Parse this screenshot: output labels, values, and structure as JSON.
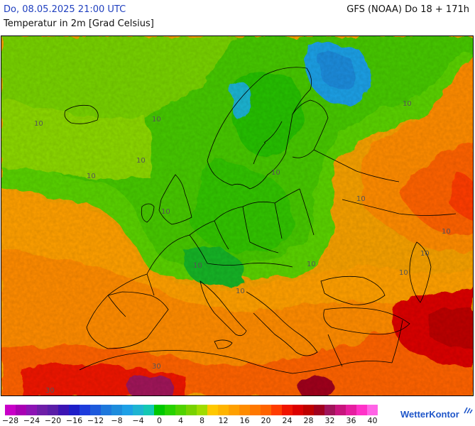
{
  "header": {
    "datetime": "Do, 08.05.2025 21:00 UTC",
    "model_run": "GFS (NOAA) Do 18 + 171h",
    "variable": "Temperatur in 2m [Grad Celsius]"
  },
  "map": {
    "contour_labels": [
      "10",
      "10",
      "10",
      "10",
      "10",
      "10",
      "10",
      "10",
      "10",
      "10",
      "10",
      "10",
      "10",
      "10",
      "30",
      "30"
    ]
  },
  "legend": {
    "colors": [
      "#c800c8",
      "#a800b4",
      "#8c14b4",
      "#6e1ea8",
      "#5a1ea8",
      "#3c14b4",
      "#1e1ec8",
      "#1e3cdc",
      "#1e5adc",
      "#1e78dc",
      "#1e8cdc",
      "#1ea0e6",
      "#1eb4d2",
      "#14c8b4",
      "#00c800",
      "#28d200",
      "#50d200",
      "#78d200",
      "#a0dc00",
      "#ffc800",
      "#ffb400",
      "#ffa000",
      "#ff8c00",
      "#ff7800",
      "#ff6400",
      "#ff3c00",
      "#f01400",
      "#dc0000",
      "#be0000",
      "#a0001e",
      "#a0145a",
      "#c8147d",
      "#e61ea0",
      "#ff32c8",
      "#ff64e6"
    ],
    "ticks": [
      "−28",
      "−24",
      "−20",
      "−16",
      "−12",
      "−8",
      "−4",
      "0",
      "4",
      "8",
      "12",
      "16",
      "20",
      "24",
      "28",
      "32",
      "36",
      "40"
    ]
  },
  "brand": {
    "name": "WetterKontor",
    "accent": "#1f56c9"
  }
}
